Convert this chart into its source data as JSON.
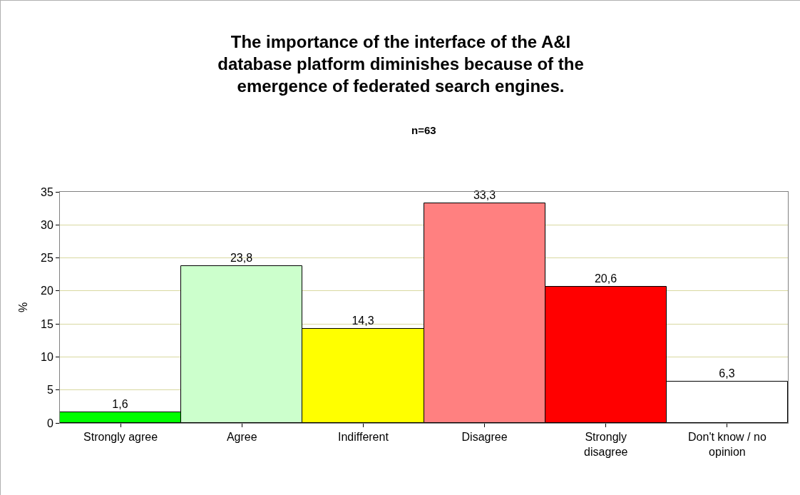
{
  "chart_data": {
    "type": "bar",
    "title": "The importance of the interface of the A&I database platform diminishes because of the emergence of federated search engines.",
    "subtitle": "n=63",
    "ylabel": "%",
    "categories": [
      "Strongly agree",
      "Agree",
      "Indifferent",
      "Disagree",
      "Strongly disagree",
      "Don't know / no opinion"
    ],
    "values": [
      1.6,
      23.8,
      14.3,
      33.3,
      20.6,
      6.3
    ],
    "value_labels": [
      "1,6",
      "23,8",
      "14,3",
      "33,3",
      "20,6",
      "6,3"
    ],
    "colors": [
      "#00ff00",
      "#ccffcc",
      "#ffff00",
      "#ff8080",
      "#ff0000",
      "#ffffff"
    ],
    "ylim": [
      0,
      35
    ],
    "yticks": [
      0,
      5,
      10,
      15,
      20,
      25,
      30,
      35
    ],
    "grid": "y"
  }
}
